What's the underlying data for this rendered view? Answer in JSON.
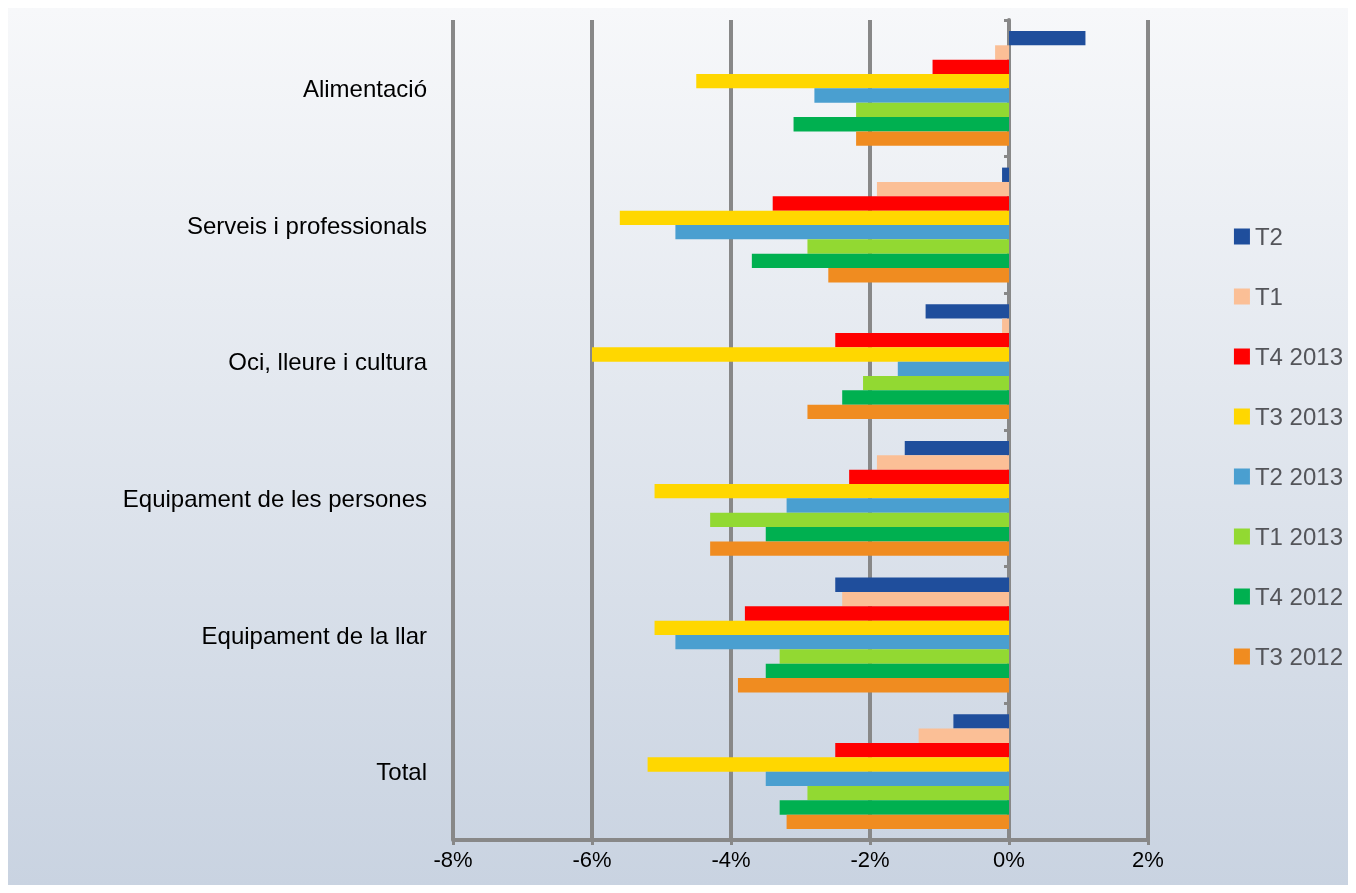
{
  "chart_data": {
    "type": "bar",
    "orientation": "horizontal",
    "categories": [
      "Alimentació",
      "Serveis i professionals",
      "Oci, lleure i cultura",
      "Equipament de les persones",
      "Equipament de la llar",
      "Total"
    ],
    "series": [
      {
        "name": "T2",
        "color": "#1f4e9c",
        "values": [
          1.1,
          -0.1,
          -1.2,
          -1.5,
          -2.5,
          -0.8
        ]
      },
      {
        "name": "T1",
        "color": "#fbbf96",
        "values": [
          -0.2,
          -1.9,
          -0.1,
          -1.9,
          -2.4,
          -1.3
        ]
      },
      {
        "name": "T4 2013",
        "color": "#ff0000",
        "values": [
          -1.1,
          -3.4,
          -2.5,
          -2.3,
          -3.8,
          -2.5
        ]
      },
      {
        "name": "T3 2013",
        "color": "#ffd700",
        "values": [
          -4.5,
          -5.6,
          -6.0,
          -5.1,
          -5.1,
          -5.2
        ]
      },
      {
        "name": "T2 2013",
        "color": "#4a9fd0",
        "values": [
          -2.8,
          -4.8,
          -1.6,
          -3.2,
          -4.8,
          -3.5
        ]
      },
      {
        "name": "T1 2013",
        "color": "#92d932",
        "values": [
          -2.2,
          -2.9,
          -2.1,
          -4.3,
          -3.3,
          -2.9
        ]
      },
      {
        "name": "T4 2012",
        "color": "#00b050",
        "values": [
          -3.1,
          -3.7,
          -2.4,
          -3.5,
          -3.5,
          -3.3
        ]
      },
      {
        "name": "T3 2012",
        "color": "#f08c20",
        "values": [
          -2.2,
          -2.6,
          -2.9,
          -4.3,
          -3.9,
          -3.2
        ]
      }
    ],
    "xlim": [
      -8,
      2
    ],
    "xticks": [
      {
        "value": -8,
        "label": "-8%"
      },
      {
        "value": -6,
        "label": "-6%"
      },
      {
        "value": -4,
        "label": "-4%"
      },
      {
        "value": -2,
        "label": "-2%"
      },
      {
        "value": 0,
        "label": "0%"
      },
      {
        "value": 2,
        "label": "2%"
      }
    ],
    "grid": "x",
    "legend": "right"
  }
}
